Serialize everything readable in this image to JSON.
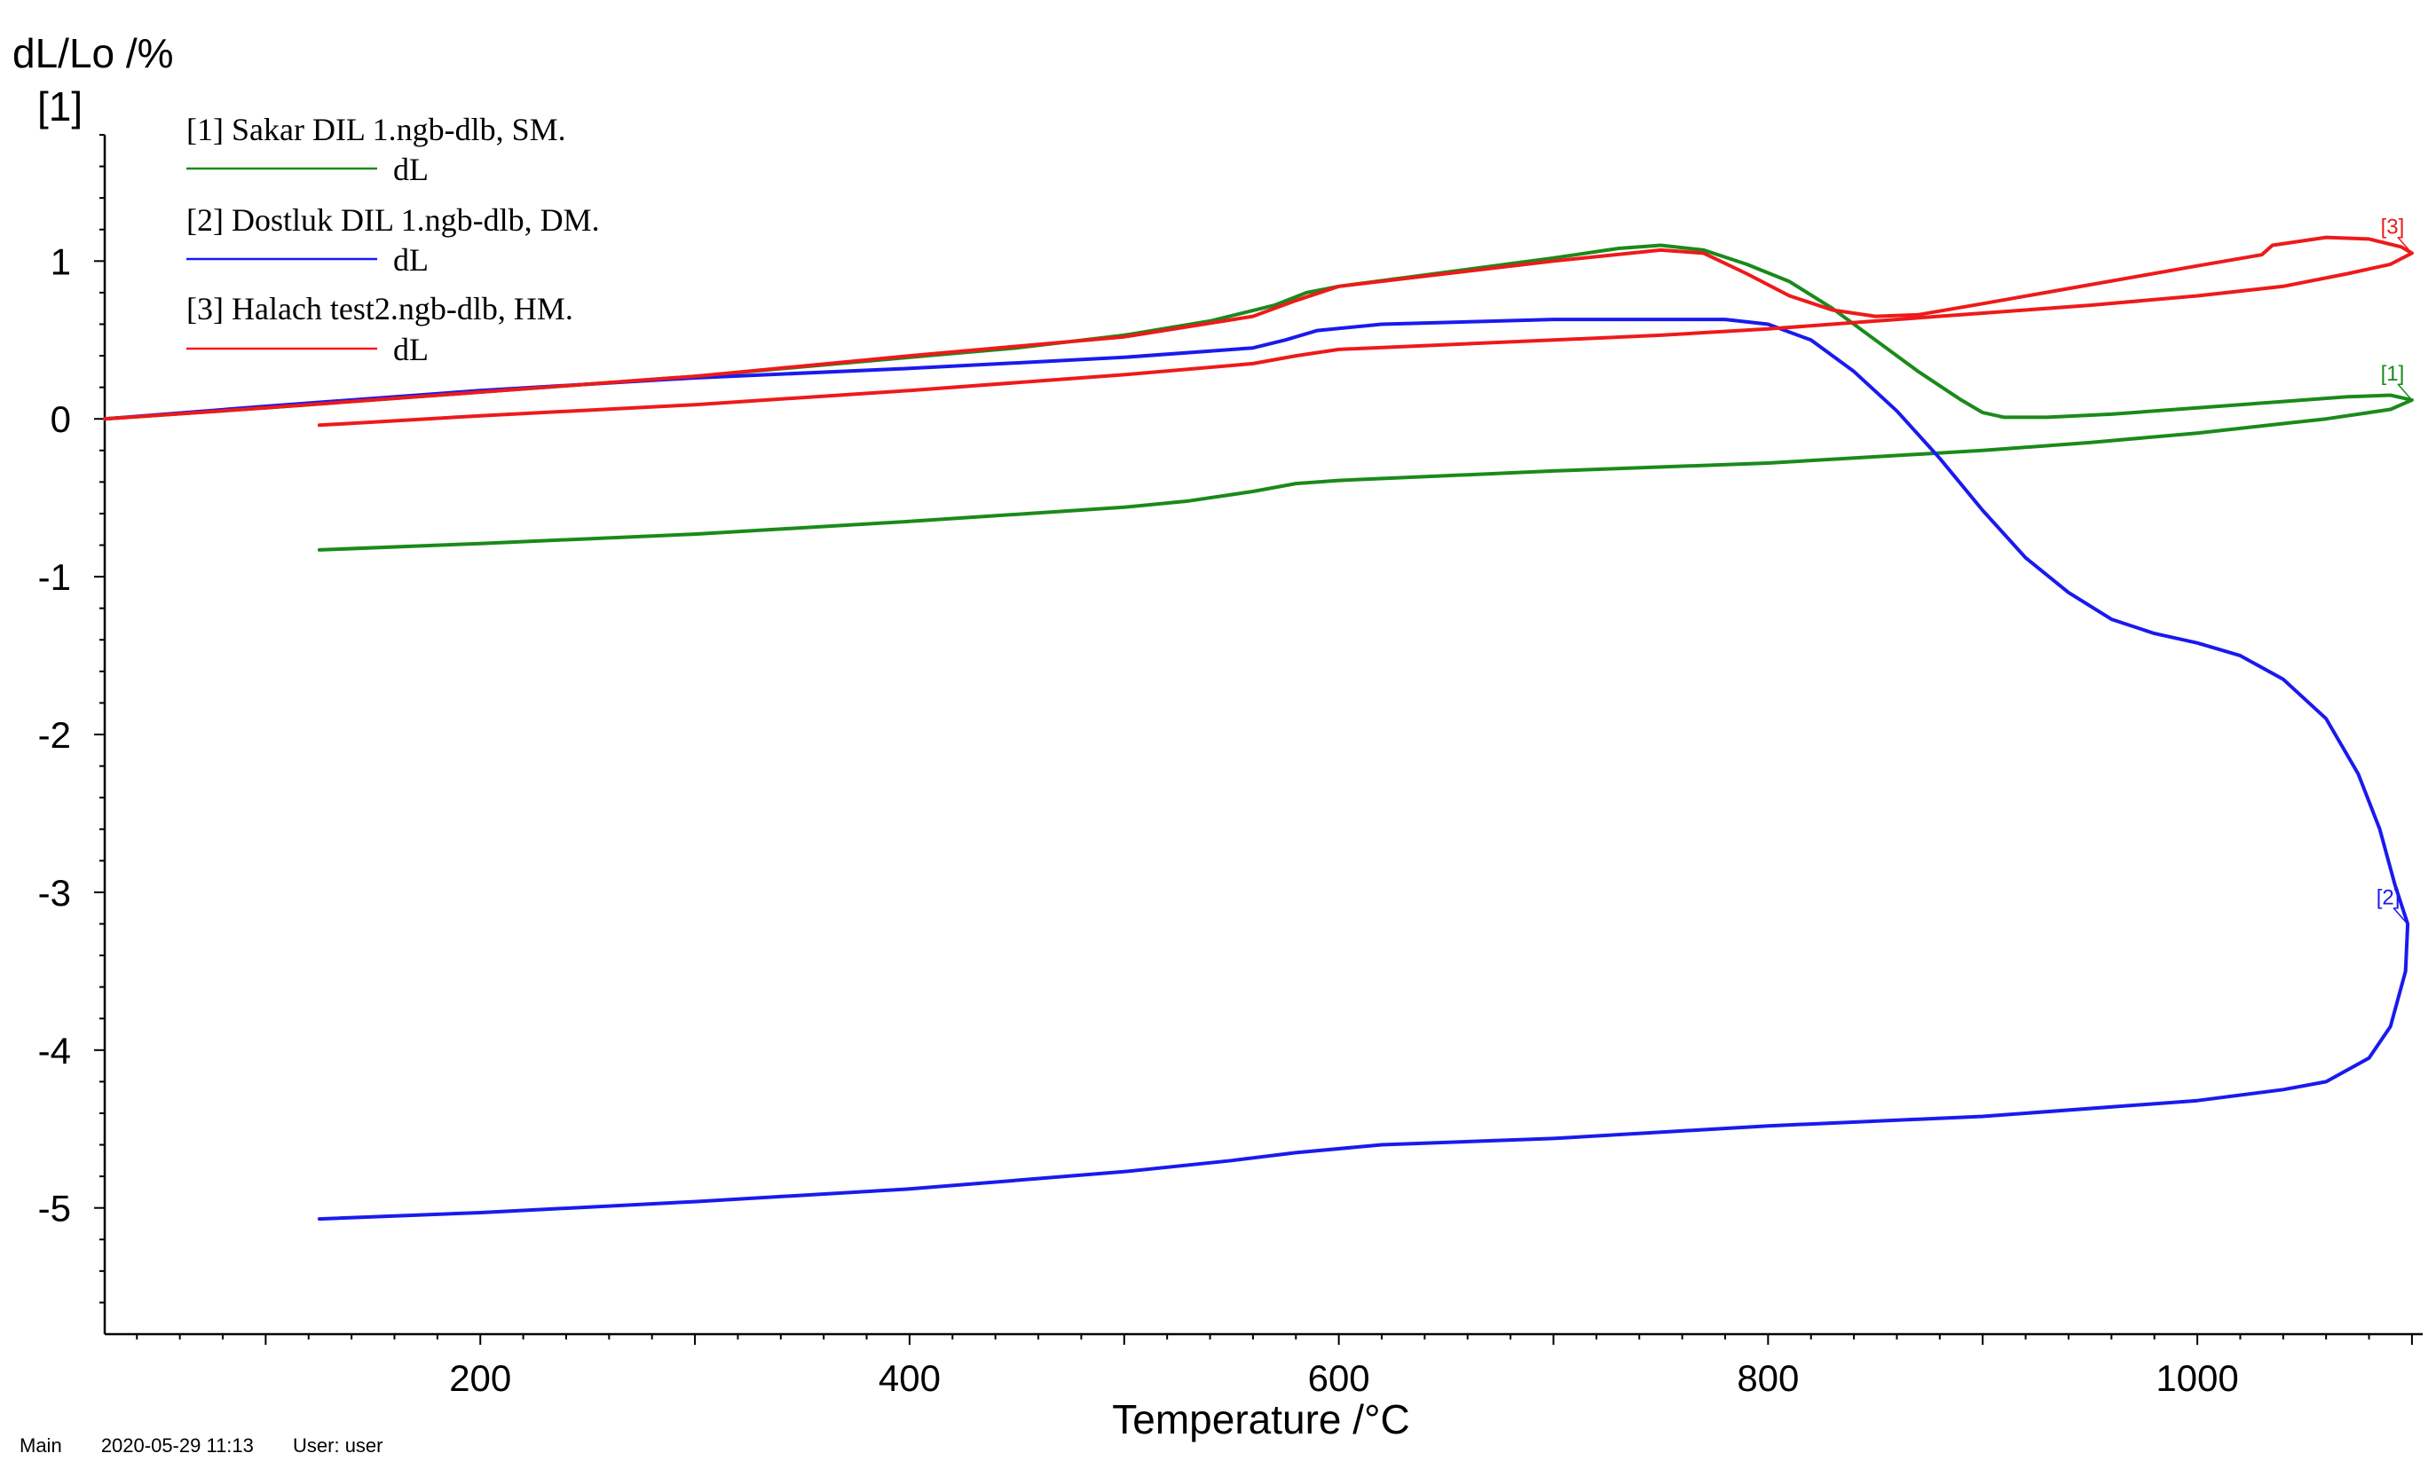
{
  "chart_data": {
    "type": "line",
    "title": "",
    "ylabel": "dL/Lo /%",
    "y_axis_tag": "[1]",
    "xlabel": "Temperature /°C",
    "xlim": [
      25,
      1105
    ],
    "ylim": [
      -5.8,
      1.8
    ],
    "x_ticks": [
      200,
      400,
      600,
      800,
      1000
    ],
    "y_ticks": [
      1,
      0,
      -1,
      -2,
      -3,
      -4,
      -5
    ],
    "x_minor_step": 20,
    "y_minor_step": 0.2,
    "grid": false,
    "legend_position": "top-left",
    "series": [
      {
        "id": "s1",
        "file": "[1]  Sakar DIL 1.ngb-dlb, SM.",
        "name": "dL",
        "end_label": "[1]",
        "color": "#1a8a1a",
        "points": [
          [
            25,
            0.0
          ],
          [
            100,
            0.07
          ],
          [
            200,
            0.17
          ],
          [
            300,
            0.27
          ],
          [
            400,
            0.39
          ],
          [
            450,
            0.45
          ],
          [
            500,
            0.53
          ],
          [
            540,
            0.62
          ],
          [
            570,
            0.72
          ],
          [
            585,
            0.8
          ],
          [
            600,
            0.84
          ],
          [
            650,
            0.93
          ],
          [
            700,
            1.02
          ],
          [
            730,
            1.08
          ],
          [
            750,
            1.1
          ],
          [
            770,
            1.07
          ],
          [
            790,
            0.98
          ],
          [
            810,
            0.87
          ],
          [
            830,
            0.7
          ],
          [
            850,
            0.5
          ],
          [
            870,
            0.3
          ],
          [
            890,
            0.12
          ],
          [
            900,
            0.04
          ],
          [
            910,
            0.01
          ],
          [
            930,
            0.01
          ],
          [
            960,
            0.03
          ],
          [
            1000,
            0.07
          ],
          [
            1040,
            0.11
          ],
          [
            1070,
            0.14
          ],
          [
            1090,
            0.15
          ],
          [
            1100,
            0.12
          ],
          [
            1090,
            0.06
          ],
          [
            1060,
            0.0
          ],
          [
            1040,
            -0.03
          ],
          [
            1000,
            -0.09
          ],
          [
            950,
            -0.15
          ],
          [
            900,
            -0.2
          ],
          [
            850,
            -0.24
          ],
          [
            800,
            -0.28
          ],
          [
            700,
            -0.33
          ],
          [
            650,
            -0.36
          ],
          [
            600,
            -0.39
          ],
          [
            580,
            -0.41
          ],
          [
            560,
            -0.46
          ],
          [
            530,
            -0.52
          ],
          [
            500,
            -0.56
          ],
          [
            400,
            -0.65
          ],
          [
            300,
            -0.73
          ],
          [
            200,
            -0.79
          ],
          [
            125,
            -0.83
          ]
        ]
      },
      {
        "id": "s2",
        "file": "[2]  Dostluk DIL 1.ngb-dlb, DM.",
        "name": "dL",
        "end_label": "[2]",
        "color": "#1a1aee",
        "points": [
          [
            25,
            0.0
          ],
          [
            100,
            0.08
          ],
          [
            200,
            0.18
          ],
          [
            300,
            0.26
          ],
          [
            400,
            0.32
          ],
          [
            500,
            0.39
          ],
          [
            560,
            0.45
          ],
          [
            575,
            0.5
          ],
          [
            590,
            0.56
          ],
          [
            620,
            0.6
          ],
          [
            700,
            0.63
          ],
          [
            780,
            0.63
          ],
          [
            800,
            0.6
          ],
          [
            820,
            0.5
          ],
          [
            840,
            0.3
          ],
          [
            860,
            0.05
          ],
          [
            880,
            -0.25
          ],
          [
            900,
            -0.58
          ],
          [
            920,
            -0.88
          ],
          [
            940,
            -1.1
          ],
          [
            960,
            -1.27
          ],
          [
            980,
            -1.36
          ],
          [
            1000,
            -1.42
          ],
          [
            1020,
            -1.5
          ],
          [
            1040,
            -1.65
          ],
          [
            1060,
            -1.9
          ],
          [
            1075,
            -2.25
          ],
          [
            1085,
            -2.6
          ],
          [
            1092,
            -2.95
          ],
          [
            1098,
            -3.2
          ],
          [
            1097,
            -3.5
          ],
          [
            1090,
            -3.85
          ],
          [
            1080,
            -4.05
          ],
          [
            1060,
            -4.2
          ],
          [
            1040,
            -4.25
          ],
          [
            1000,
            -4.32
          ],
          [
            900,
            -4.42
          ],
          [
            800,
            -4.48
          ],
          [
            700,
            -4.56
          ],
          [
            620,
            -4.6
          ],
          [
            580,
            -4.65
          ],
          [
            550,
            -4.7
          ],
          [
            500,
            -4.77
          ],
          [
            400,
            -4.88
          ],
          [
            300,
            -4.96
          ],
          [
            200,
            -5.03
          ],
          [
            125,
            -5.07
          ]
        ]
      },
      {
        "id": "s3",
        "file": "[3]  Halach test2.ngb-dlb, HM.",
        "name": "dL",
        "end_label": "[3]",
        "color": "#ee1a1a",
        "points": [
          [
            25,
            0.0
          ],
          [
            100,
            0.07
          ],
          [
            200,
            0.17
          ],
          [
            300,
            0.27
          ],
          [
            400,
            0.4
          ],
          [
            500,
            0.52
          ],
          [
            560,
            0.65
          ],
          [
            580,
            0.75
          ],
          [
            600,
            0.84
          ],
          [
            650,
            0.92
          ],
          [
            700,
            1.0
          ],
          [
            750,
            1.07
          ],
          [
            770,
            1.05
          ],
          [
            790,
            0.92
          ],
          [
            810,
            0.78
          ],
          [
            830,
            0.69
          ],
          [
            850,
            0.65
          ],
          [
            870,
            0.66
          ],
          [
            900,
            0.73
          ],
          [
            950,
            0.85
          ],
          [
            1000,
            0.97
          ],
          [
            1030,
            1.04
          ],
          [
            1035,
            1.1
          ],
          [
            1060,
            1.15
          ],
          [
            1080,
            1.14
          ],
          [
            1095,
            1.09
          ],
          [
            1100,
            1.05
          ],
          [
            1090,
            0.98
          ],
          [
            1070,
            0.92
          ],
          [
            1040,
            0.84
          ],
          [
            1000,
            0.78
          ],
          [
            950,
            0.72
          ],
          [
            900,
            0.67
          ],
          [
            850,
            0.62
          ],
          [
            800,
            0.57
          ],
          [
            750,
            0.53
          ],
          [
            700,
            0.5
          ],
          [
            650,
            0.47
          ],
          [
            600,
            0.44
          ],
          [
            580,
            0.4
          ],
          [
            560,
            0.35
          ],
          [
            500,
            0.28
          ],
          [
            400,
            0.18
          ],
          [
            300,
            0.09
          ],
          [
            200,
            0.02
          ],
          [
            125,
            -0.04
          ]
        ]
      }
    ]
  },
  "footer": {
    "mode": "Main",
    "datetime": "2020-05-29 11:13",
    "user": "User: user"
  }
}
